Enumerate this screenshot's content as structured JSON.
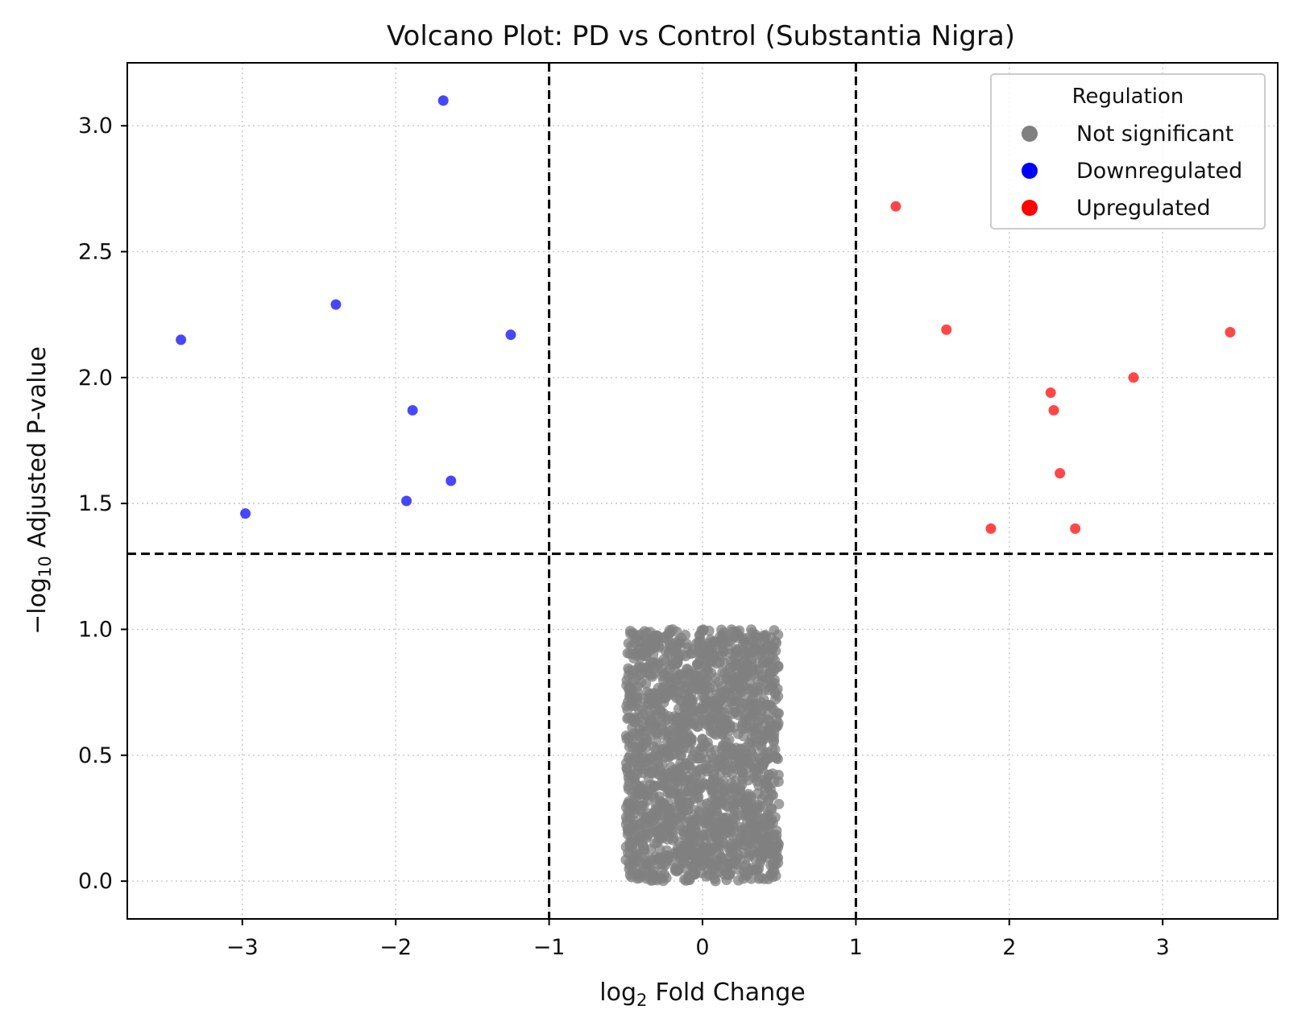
{
  "chart_data": {
    "type": "scatter",
    "title": "Volcano Plot: PD vs Control (Substantia Nigra)",
    "xlabel": {
      "prefix": "log",
      "sub": "2",
      "suffix": "Fold Change"
    },
    "ylabel": {
      "prefix": "−log",
      "sub": "10",
      "suffix": "Adjusted P-value"
    },
    "xlim": [
      -3.75,
      3.75
    ],
    "ylim": [
      -0.15,
      3.25
    ],
    "x_ticks": [
      -3,
      -2,
      -1,
      0,
      1,
      2,
      3
    ],
    "x_tick_labels": [
      "−3",
      "−2",
      "−1",
      "0",
      "1",
      "2",
      "3"
    ],
    "y_ticks": [
      0.0,
      0.5,
      1.0,
      1.5,
      2.0,
      2.5,
      3.0
    ],
    "y_tick_labels": [
      "0.0",
      "0.5",
      "1.0",
      "1.5",
      "2.0",
      "2.5",
      "3.0"
    ],
    "grid": true,
    "thresholds": {
      "x": [
        -1,
        1
      ],
      "y": [
        1.3
      ]
    },
    "legend": {
      "title": "Regulation",
      "placement": "top-right"
    },
    "series": [
      {
        "name": "Not significant",
        "color": "#808080",
        "region": {
          "x_range": [
            -0.5,
            0.5
          ],
          "y_range": [
            0.0,
            1.0
          ]
        },
        "points": []
      },
      {
        "name": "Downregulated",
        "color": "#0000ff",
        "points": [
          {
            "x": -3.4,
            "y": 2.15
          },
          {
            "x": -2.98,
            "y": 1.46
          },
          {
            "x": -2.39,
            "y": 2.29
          },
          {
            "x": -1.93,
            "y": 1.51
          },
          {
            "x": -1.89,
            "y": 1.87
          },
          {
            "x": -1.69,
            "y": 3.1
          },
          {
            "x": -1.64,
            "y": 1.59
          },
          {
            "x": -1.25,
            "y": 2.17
          }
        ]
      },
      {
        "name": "Upregulated",
        "color": "#ff0000",
        "points": [
          {
            "x": 1.26,
            "y": 2.68
          },
          {
            "x": 1.59,
            "y": 2.19
          },
          {
            "x": 1.88,
            "y": 1.4
          },
          {
            "x": 2.27,
            "y": 1.94
          },
          {
            "x": 2.29,
            "y": 1.87
          },
          {
            "x": 2.33,
            "y": 1.62
          },
          {
            "x": 2.43,
            "y": 1.4
          },
          {
            "x": 2.81,
            "y": 2.0
          },
          {
            "x": 3.44,
            "y": 2.18
          }
        ]
      }
    ]
  }
}
